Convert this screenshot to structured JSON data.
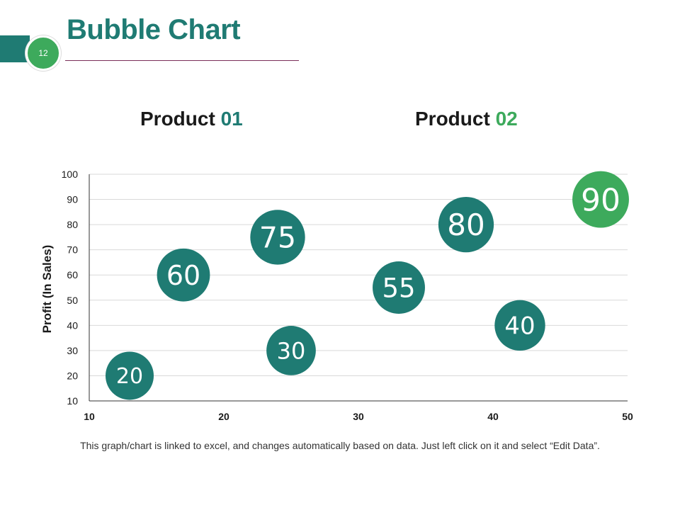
{
  "header": {
    "title": "Bubble Chart",
    "slide_number": "12"
  },
  "products": [
    {
      "label": "Product",
      "number": "01"
    },
    {
      "label": "Product",
      "number": "02"
    }
  ],
  "colors": {
    "primary": "#1f7b73",
    "secondary": "#3daa5c",
    "grid": "#d9d9d9"
  },
  "chart_data": {
    "type": "scatter",
    "title": "",
    "xlabel": "",
    "ylabel": "Profit  (In Sales)",
    "xlim": [
      10,
      50
    ],
    "ylim": [
      10,
      100
    ],
    "x_ticks": [
      10,
      20,
      30,
      40,
      50
    ],
    "y_ticks": [
      10,
      20,
      30,
      40,
      50,
      60,
      70,
      80,
      90,
      100
    ],
    "grid": true,
    "points": [
      {
        "x": 13,
        "y": 20,
        "size": 20,
        "label": "20",
        "color": "#1f7b73"
      },
      {
        "x": 17,
        "y": 60,
        "size": 60,
        "label": "60",
        "color": "#1f7b73"
      },
      {
        "x": 24,
        "y": 75,
        "size": 75,
        "label": "75",
        "color": "#1f7b73"
      },
      {
        "x": 25,
        "y": 30,
        "size": 30,
        "label": "30",
        "color": "#1f7b73"
      },
      {
        "x": 33,
        "y": 55,
        "size": 55,
        "label": "55",
        "color": "#1f7b73"
      },
      {
        "x": 38,
        "y": 80,
        "size": 80,
        "label": "80",
        "color": "#1f7b73"
      },
      {
        "x": 42,
        "y": 40,
        "size": 40,
        "label": "40",
        "color": "#1f7b73"
      },
      {
        "x": 48,
        "y": 90,
        "size": 90,
        "label": "90",
        "color": "#3daa5c"
      }
    ]
  },
  "footer": {
    "note": "This graph/chart is linked to excel, and changes automatically  based on data. Just left click on it and select “Edit Data”."
  }
}
